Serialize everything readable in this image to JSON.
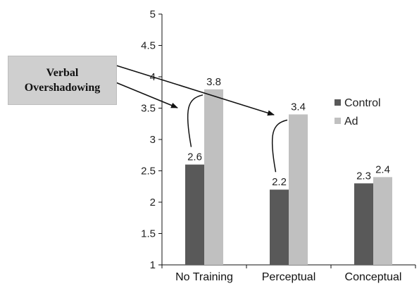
{
  "chart_data": {
    "type": "bar",
    "categories": [
      "No Training",
      "Perceptual",
      "Conceptual"
    ],
    "series": [
      {
        "name": "Control",
        "values": [
          2.6,
          2.2,
          2.3
        ],
        "color": "#595959"
      },
      {
        "name": "Ad",
        "values": [
          3.8,
          3.4,
          2.4
        ],
        "color": "#c0c0c0"
      }
    ],
    "data_labels": [
      [
        "2.6",
        "2.2",
        "2.3"
      ],
      [
        "3.8",
        "3.4",
        "2.4"
      ]
    ],
    "ylim": [
      1,
      5
    ],
    "yticks": [
      "1",
      "1.5",
      "2",
      "2.5",
      "3",
      "3.5",
      "4",
      "4.5",
      "5"
    ],
    "grid": false,
    "legend_position": "right",
    "annotation": {
      "line1": "Verbal",
      "line2": "Overshadowing"
    }
  }
}
